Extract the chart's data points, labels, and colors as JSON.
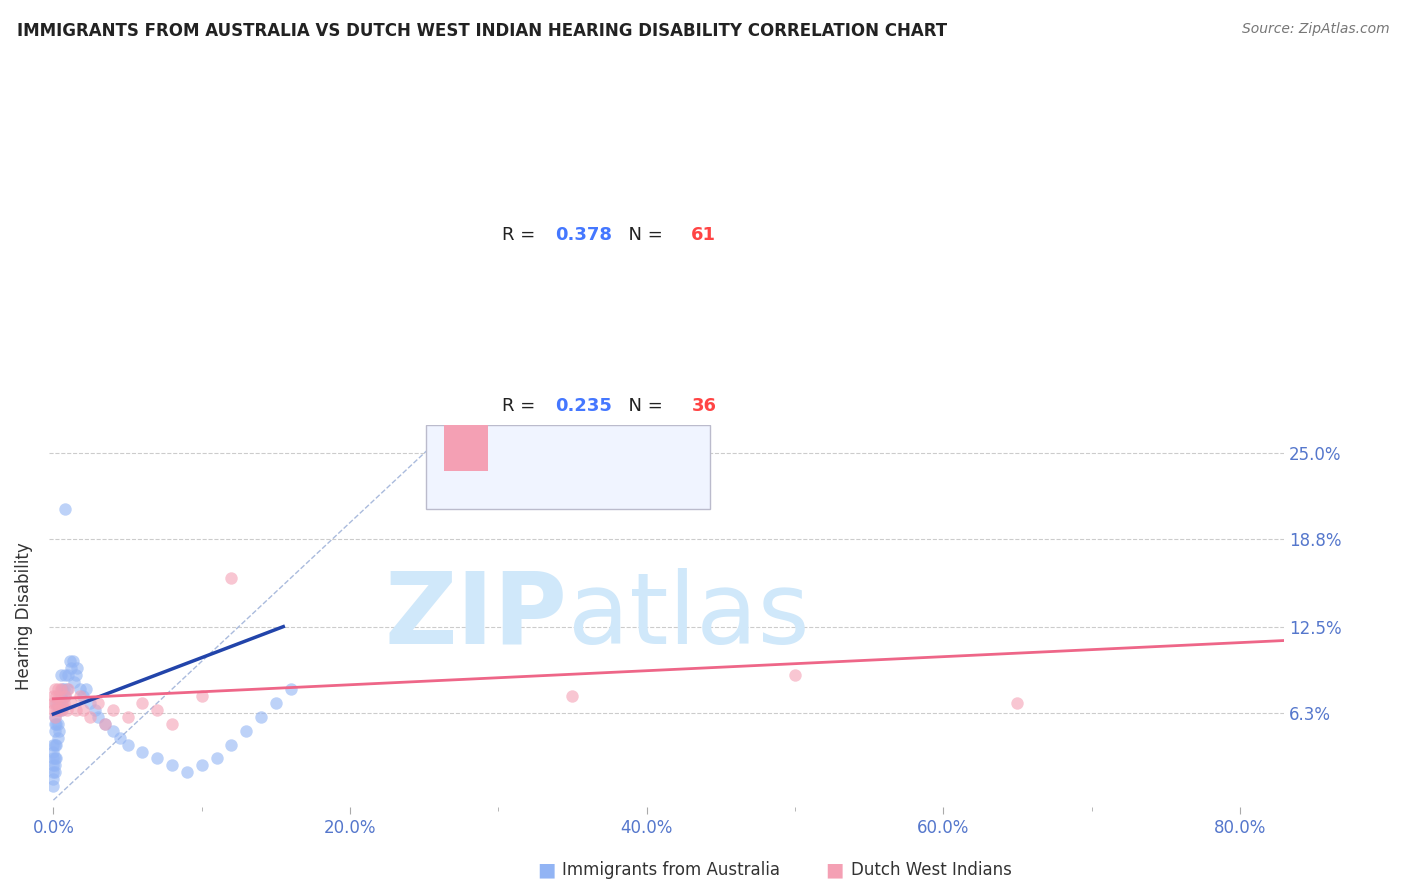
{
  "title": "IMMIGRANTS FROM AUSTRALIA VS DUTCH WEST INDIAN HEARING DISABILITY CORRELATION CHART",
  "source": "Source: ZipAtlas.com",
  "ylabel": "Hearing Disability",
  "xticklabels": [
    "0.0%",
    "",
    "20.0%",
    "",
    "40.0%",
    "",
    "60.0%",
    "",
    "80.0%"
  ],
  "xticks": [
    0.0,
    0.1,
    0.2,
    0.3,
    0.4,
    0.5,
    0.6,
    0.7,
    0.8
  ],
  "yticks_right": [
    0.063,
    0.125,
    0.188,
    0.25
  ],
  "ytick_right_labels": [
    "6.3%",
    "12.5%",
    "18.8%",
    "25.0%"
  ],
  "xlim": [
    -0.003,
    0.83
  ],
  "ylim": [
    -0.005,
    0.27
  ],
  "blue_color": "#92b4f4",
  "pink_color": "#f4a0b4",
  "blue_line_color": "#2244aa",
  "pink_line_color": "#ee6688",
  "dot_alpha": 0.6,
  "dot_size": 80,
  "blue_scatter_x": [
    0.0,
    0.0,
    0.0,
    0.0,
    0.0,
    0.0,
    0.0,
    0.001,
    0.001,
    0.001,
    0.001,
    0.001,
    0.001,
    0.001,
    0.002,
    0.002,
    0.002,
    0.002,
    0.003,
    0.003,
    0.003,
    0.004,
    0.004,
    0.005,
    0.005,
    0.005,
    0.006,
    0.006,
    0.007,
    0.008,
    0.008,
    0.009,
    0.01,
    0.011,
    0.012,
    0.013,
    0.014,
    0.015,
    0.016,
    0.018,
    0.02,
    0.022,
    0.025,
    0.028,
    0.03,
    0.035,
    0.04,
    0.045,
    0.05,
    0.06,
    0.07,
    0.08,
    0.09,
    0.1,
    0.11,
    0.12,
    0.13,
    0.14,
    0.15,
    0.16,
    0.008
  ],
  "blue_scatter_y": [
    0.01,
    0.015,
    0.02,
    0.025,
    0.03,
    0.035,
    0.04,
    0.02,
    0.025,
    0.03,
    0.04,
    0.05,
    0.055,
    0.06,
    0.03,
    0.04,
    0.055,
    0.07,
    0.045,
    0.055,
    0.065,
    0.05,
    0.07,
    0.065,
    0.075,
    0.09,
    0.07,
    0.08,
    0.08,
    0.075,
    0.09,
    0.08,
    0.09,
    0.1,
    0.095,
    0.1,
    0.085,
    0.09,
    0.095,
    0.08,
    0.075,
    0.08,
    0.07,
    0.065,
    0.06,
    0.055,
    0.05,
    0.045,
    0.04,
    0.035,
    0.03,
    0.025,
    0.02,
    0.025,
    0.03,
    0.04,
    0.05,
    0.06,
    0.07,
    0.08,
    0.21
  ],
  "pink_scatter_x": [
    0.0,
    0.0,
    0.0,
    0.001,
    0.001,
    0.001,
    0.002,
    0.002,
    0.003,
    0.003,
    0.004,
    0.004,
    0.005,
    0.005,
    0.006,
    0.007,
    0.008,
    0.009,
    0.01,
    0.012,
    0.015,
    0.018,
    0.02,
    0.025,
    0.03,
    0.035,
    0.04,
    0.05,
    0.06,
    0.07,
    0.08,
    0.1,
    0.12,
    0.35,
    0.5,
    0.65
  ],
  "pink_scatter_y": [
    0.065,
    0.07,
    0.075,
    0.06,
    0.07,
    0.08,
    0.065,
    0.075,
    0.07,
    0.08,
    0.065,
    0.075,
    0.07,
    0.08,
    0.065,
    0.07,
    0.075,
    0.065,
    0.08,
    0.07,
    0.065,
    0.075,
    0.065,
    0.06,
    0.07,
    0.055,
    0.065,
    0.06,
    0.07,
    0.065,
    0.055,
    0.075,
    0.16,
    0.075,
    0.09,
    0.07
  ],
  "background_color": "#ffffff",
  "grid_color": "#cccccc",
  "watermark_zip": "ZIP",
  "watermark_atlas": "atlas",
  "watermark_color": "#d0e8fa",
  "legend_box_facecolor": "#f0f4ff",
  "legend_box_edgecolor": "#bbbbcc"
}
